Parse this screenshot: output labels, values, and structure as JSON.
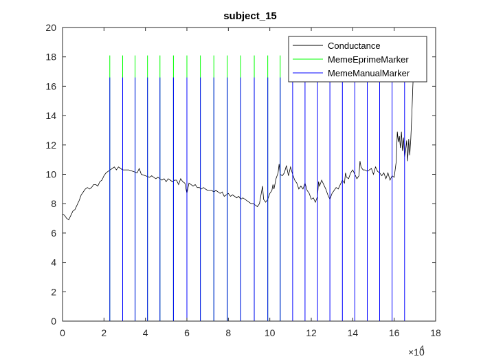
{
  "chart_data": {
    "type": "line",
    "title": "subject_15",
    "xlabel": "",
    "ylabel": "",
    "xlim": [
      0,
      180000
    ],
    "ylim": [
      0,
      20
    ],
    "x_ticks": [
      0,
      20000,
      40000,
      60000,
      80000,
      100000,
      120000,
      140000,
      160000,
      180000
    ],
    "x_tick_labels": [
      "0",
      "2",
      "4",
      "6",
      "8",
      "10",
      "12",
      "14",
      "16",
      "18"
    ],
    "x_exponent_base": "×10",
    "x_exponent_power": "4",
    "y_ticks": [
      0,
      2,
      4,
      6,
      8,
      10,
      12,
      14,
      16,
      18,
      20
    ],
    "y_tick_labels": [
      "0",
      "2",
      "4",
      "6",
      "8",
      "10",
      "12",
      "14",
      "16",
      "18",
      "20"
    ],
    "grid": false,
    "legend_position": "top-right",
    "series": [
      {
        "name": "Conductance",
        "color": "#000000",
        "points": [
          [
            0,
            7.3
          ],
          [
            1000,
            7.2
          ],
          [
            2000,
            7.0
          ],
          [
            3000,
            6.9
          ],
          [
            4000,
            7.2
          ],
          [
            5000,
            7.5
          ],
          [
            6000,
            7.6
          ],
          [
            7000,
            7.9
          ],
          [
            8000,
            8.2
          ],
          [
            9000,
            8.6
          ],
          [
            10000,
            8.8
          ],
          [
            11000,
            9.0
          ],
          [
            12000,
            9.1
          ],
          [
            13000,
            9.0
          ],
          [
            14000,
            9.1
          ],
          [
            15000,
            9.3
          ],
          [
            16000,
            9.3
          ],
          [
            17000,
            9.2
          ],
          [
            18000,
            9.5
          ],
          [
            19000,
            9.6
          ],
          [
            20000,
            9.9
          ],
          [
            21000,
            10.1
          ],
          [
            22000,
            10.2
          ],
          [
            23000,
            10.3
          ],
          [
            24000,
            10.4
          ],
          [
            25000,
            10.5
          ],
          [
            26000,
            10.3
          ],
          [
            27000,
            10.5
          ],
          [
            28000,
            10.4
          ],
          [
            29000,
            10.3
          ],
          [
            30000,
            10.3
          ],
          [
            32000,
            10.3
          ],
          [
            34000,
            10.2
          ],
          [
            36000,
            10.1
          ],
          [
            37000,
            10.4
          ],
          [
            38000,
            10.0
          ],
          [
            40000,
            9.9
          ],
          [
            42000,
            9.8
          ],
          [
            43000,
            9.9
          ],
          [
            44000,
            9.8
          ],
          [
            45000,
            9.7
          ],
          [
            46000,
            9.8
          ],
          [
            47000,
            9.7
          ],
          [
            48000,
            9.6
          ],
          [
            49000,
            9.7
          ],
          [
            50000,
            9.5
          ],
          [
            51000,
            9.7
          ],
          [
            52000,
            9.6
          ],
          [
            53000,
            9.5
          ],
          [
            54000,
            9.6
          ],
          [
            55000,
            9.6
          ],
          [
            56000,
            9.3
          ],
          [
            57000,
            9.7
          ],
          [
            58000,
            9.5
          ],
          [
            59000,
            9.4
          ],
          [
            60000,
            8.7
          ],
          [
            61000,
            9.4
          ],
          [
            62000,
            9.3
          ],
          [
            63000,
            9.2
          ],
          [
            64000,
            9.3
          ],
          [
            65000,
            9.1
          ],
          [
            66000,
            9.1
          ],
          [
            67000,
            9.0
          ],
          [
            68000,
            9.1
          ],
          [
            69000,
            9.0
          ],
          [
            70000,
            8.9
          ],
          [
            71000,
            8.9
          ],
          [
            72000,
            8.9
          ],
          [
            73000,
            8.8
          ],
          [
            74000,
            8.9
          ],
          [
            75000,
            8.8
          ],
          [
            76000,
            8.7
          ],
          [
            77000,
            8.8
          ],
          [
            78000,
            8.5
          ],
          [
            79000,
            8.6
          ],
          [
            80000,
            8.7
          ],
          [
            81000,
            8.5
          ],
          [
            82000,
            8.6
          ],
          [
            83000,
            8.5
          ],
          [
            84000,
            8.4
          ],
          [
            85000,
            8.5
          ],
          [
            86000,
            8.3
          ],
          [
            87000,
            8.4
          ],
          [
            88000,
            8.3
          ],
          [
            89000,
            8.2
          ],
          [
            90000,
            8.1
          ],
          [
            91000,
            8.0
          ],
          [
            92000,
            8.0
          ],
          [
            93000,
            7.9
          ],
          [
            94000,
            7.8
          ],
          [
            95000,
            8.0
          ],
          [
            96000,
            8.8
          ],
          [
            96500,
            9.2
          ],
          [
            97000,
            8.3
          ],
          [
            98000,
            8.1
          ],
          [
            99000,
            8.3
          ],
          [
            100000,
            8.7
          ],
          [
            101000,
            8.9
          ],
          [
            101500,
            9.3
          ],
          [
            102000,
            9.0
          ],
          [
            103000,
            9.7
          ],
          [
            104000,
            10.1
          ],
          [
            104500,
            10.7
          ],
          [
            105000,
            10.0
          ],
          [
            106000,
            9.9
          ],
          [
            107000,
            10.1
          ],
          [
            108000,
            10.6
          ],
          [
            109000,
            9.9
          ],
          [
            110000,
            10.5
          ],
          [
            111000,
            10.0
          ],
          [
            112000,
            9.6
          ],
          [
            113000,
            9.4
          ],
          [
            114000,
            9.0
          ],
          [
            115000,
            9.2
          ],
          [
            116000,
            9.0
          ],
          [
            117000,
            9.4
          ],
          [
            118000,
            8.9
          ],
          [
            119000,
            8.7
          ],
          [
            120000,
            8.3
          ],
          [
            121000,
            8.4
          ],
          [
            122000,
            8.1
          ],
          [
            123000,
            8.5
          ],
          [
            123500,
            9.5
          ],
          [
            124000,
            9.2
          ],
          [
            125000,
            9.6
          ],
          [
            126000,
            9.3
          ],
          [
            127000,
            9.0
          ],
          [
            128000,
            8.6
          ],
          [
            129000,
            8.3
          ],
          [
            130000,
            8.7
          ],
          [
            131000,
            8.9
          ],
          [
            132000,
            9.1
          ],
          [
            133000,
            9.0
          ],
          [
            134000,
            9.3
          ],
          [
            135000,
            9.6
          ],
          [
            136000,
            9.4
          ],
          [
            136500,
            10.1
          ],
          [
            137000,
            9.8
          ],
          [
            138000,
            9.7
          ],
          [
            139000,
            10.1
          ],
          [
            140000,
            10.3
          ],
          [
            141000,
            10.0
          ],
          [
            142000,
            9.7
          ],
          [
            143000,
            9.9
          ],
          [
            143500,
            10.9
          ],
          [
            144000,
            10.5
          ],
          [
            145000,
            10.3
          ],
          [
            146000,
            10.3
          ],
          [
            147000,
            10.2
          ],
          [
            148000,
            10.3
          ],
          [
            149000,
            10.4
          ],
          [
            150000,
            10.0
          ],
          [
            151000,
            10.5
          ],
          [
            152000,
            10.2
          ],
          [
            153000,
            10.1
          ],
          [
            154000,
            9.9
          ],
          [
            155000,
            10.1
          ],
          [
            156000,
            9.7
          ],
          [
            157000,
            10.1
          ],
          [
            158000,
            9.6
          ],
          [
            159000,
            9.9
          ],
          [
            160000,
            9.8
          ],
          [
            161000,
            10.9
          ],
          [
            161500,
            12.9
          ],
          [
            162000,
            12.2
          ],
          [
            162500,
            12.6
          ],
          [
            163000,
            11.8
          ],
          [
            163500,
            12.9
          ],
          [
            164000,
            11.6
          ],
          [
            164500,
            12.5
          ],
          [
            165000,
            11.2
          ],
          [
            165500,
            11.6
          ],
          [
            166000,
            12.3
          ],
          [
            166500,
            10.9
          ],
          [
            167000,
            12.4
          ],
          [
            167500,
            11.3
          ],
          [
            168000,
            12.4
          ],
          [
            168500,
            14.0
          ],
          [
            169000,
            16.0
          ],
          [
            169500,
            17.5
          ]
        ]
      },
      {
        "name": "MemeEprimeMarker",
        "color": "#00ff00",
        "marker_height": 18.1,
        "x": [
          22800,
          29000,
          35000,
          41000,
          47000,
          53500,
          60000,
          66500,
          73000,
          79500,
          86000,
          92500,
          99000,
          105000
        ]
      },
      {
        "name": "MemeManualMarker",
        "color": "#0000ff",
        "marker_height": 16.6,
        "x": [
          22800,
          29000,
          35000,
          41000,
          47000,
          53500,
          60000,
          66500,
          73000,
          79500,
          86000,
          92500,
          99000,
          105000,
          111000,
          117000,
          123000,
          129000,
          135000,
          141000,
          147000,
          153000,
          159000,
          165000
        ],
        "x_end": 170000
      }
    ]
  }
}
